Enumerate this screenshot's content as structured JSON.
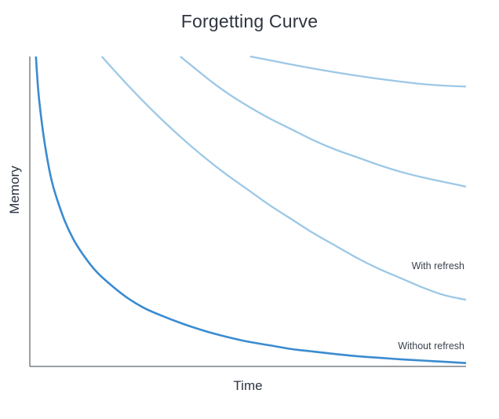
{
  "chart_data": {
    "type": "line",
    "title": "Forgetting Curve",
    "xlabel": "Time",
    "ylabel": "Memory",
    "xlim": [
      0,
      100
    ],
    "ylim": [
      0,
      100
    ],
    "grid": false,
    "ticks": false,
    "series": [
      {
        "label": "Without refresh",
        "color": "#3a8bd0",
        "x": [
          1.4,
          2,
          3,
          4,
          5,
          6,
          8,
          10,
          12,
          15,
          18,
          22,
          26,
          30,
          35,
          40,
          45,
          50,
          55,
          60,
          65,
          70,
          75,
          80,
          85,
          90,
          95,
          100
        ],
        "y": [
          100,
          88,
          76,
          67,
          60,
          55,
          47,
          41,
          36.5,
          31,
          27,
          22.5,
          19,
          16.5,
          13.8,
          11.5,
          9.6,
          8,
          6.8,
          5.6,
          4.8,
          4,
          3.3,
          2.8,
          2.3,
          1.9,
          1.5,
          1.1
        ]
      },
      {
        "label": "With refresh",
        "color": "#9cc8e6",
        "x": [
          16.5,
          20,
          25,
          30,
          35,
          40,
          45,
          50,
          55,
          60,
          65,
          70,
          75,
          80,
          85,
          90,
          95,
          100
        ],
        "y": [
          100,
          94.5,
          87,
          80,
          73.5,
          67.5,
          62,
          57,
          52,
          47.5,
          43,
          39,
          35,
          31.5,
          28.5,
          25.5,
          23,
          21.5
        ]
      },
      {
        "label": "",
        "color": "#9cc8e6",
        "x": [
          34.5,
          38,
          42,
          46,
          50,
          55,
          60,
          65,
          70,
          75,
          80,
          85,
          90,
          95,
          100
        ],
        "y": [
          100,
          96,
          91.5,
          87.5,
          84,
          80,
          76.5,
          73,
          70,
          67.5,
          65,
          62.8,
          61,
          59.5,
          58
        ]
      },
      {
        "label": "",
        "color": "#9cc8e6",
        "x": [
          50.5,
          55,
          60,
          65,
          70,
          75,
          80,
          85,
          90,
          95,
          100
        ],
        "y": [
          100,
          98.8,
          97.4,
          96.1,
          94.9,
          93.8,
          92.8,
          91.9,
          91.1,
          90.6,
          90.3
        ]
      }
    ],
    "annotations": [
      {
        "text": "With refresh",
        "near_series": 1
      },
      {
        "text": "Without refresh",
        "near_series": 0
      }
    ]
  }
}
